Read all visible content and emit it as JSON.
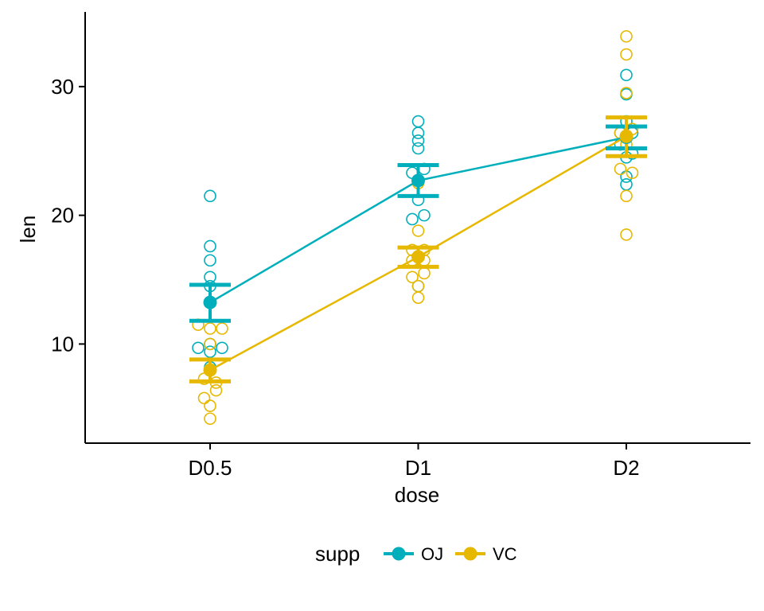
{
  "chart_data": {
    "type": "line",
    "title": "",
    "xlabel": "dose",
    "ylabel": "len",
    "categories": [
      "D0.5",
      "D1",
      "D2"
    ],
    "ylim": [
      2.3,
      35.8
    ],
    "yticks": [
      10,
      20,
      30
    ],
    "grid": false,
    "legend": {
      "title": "supp",
      "position": "bottom"
    },
    "series": [
      {
        "name": "OJ",
        "color": "#00AFBB",
        "mean": [
          13.23,
          22.7,
          26.06
        ],
        "error_bars": [
          [
            11.8,
            14.6
          ],
          [
            21.5,
            23.9
          ],
          [
            25.2,
            26.9
          ]
        ],
        "points": [
          [
            15.2,
            21.5,
            17.6,
            9.7,
            14.5,
            10.0,
            8.2,
            9.4,
            16.5,
            9.7
          ],
          [
            19.7,
            23.3,
            23.6,
            26.4,
            20.0,
            25.2,
            25.8,
            21.2,
            14.5,
            27.3
          ],
          [
            25.5,
            26.4,
            22.4,
            24.5,
            24.8,
            30.9,
            26.4,
            27.3,
            29.4,
            23.0
          ]
        ]
      },
      {
        "name": "VC",
        "color": "#E7B800",
        "mean": [
          7.98,
          16.77,
          26.14
        ],
        "error_bars": [
          [
            7.1,
            8.8
          ],
          [
            16.0,
            17.5
          ],
          [
            24.6,
            27.6
          ]
        ],
        "points": [
          [
            4.2,
            11.5,
            7.3,
            5.8,
            6.4,
            10.0,
            11.2,
            11.2,
            5.2,
            7.0
          ],
          [
            16.5,
            16.5,
            15.2,
            17.3,
            22.5,
            17.3,
            13.6,
            14.5,
            18.8,
            15.5
          ],
          [
            23.6,
            18.5,
            33.9,
            25.5,
            26.4,
            32.5,
            26.7,
            21.5,
            23.3,
            29.5
          ]
        ]
      }
    ]
  }
}
